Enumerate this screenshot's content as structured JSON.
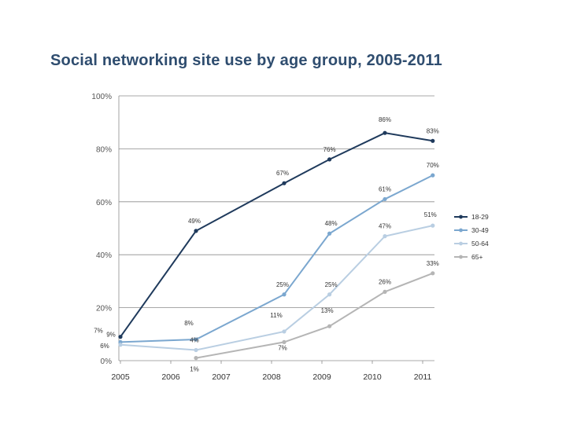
{
  "chart_data": {
    "type": "line",
    "title": "Social networking site use by age group, 2005-2011",
    "xlabel": "",
    "ylabel": "",
    "ylim": [
      0,
      100
    ],
    "y_ticks": [
      "0%",
      "20%",
      "40%",
      "60%",
      "80%",
      "100%"
    ],
    "x_ticks": [
      "2005",
      "2006",
      "2007",
      "2008",
      "2009",
      "2010",
      "2011"
    ],
    "legend_position": "right",
    "grid": true,
    "series": [
      {
        "name": "18-29",
        "color": "#1f3a5c",
        "points": [
          {
            "x": 2005.0,
            "y": 9,
            "label": "9%"
          },
          {
            "x": 2006.5,
            "y": 49,
            "label": "49%"
          },
          {
            "x": 2008.25,
            "y": 67,
            "label": "67%"
          },
          {
            "x": 2009.15,
            "y": 76,
            "label": "76%"
          },
          {
            "x": 2010.25,
            "y": 86,
            "label": "86%"
          },
          {
            "x": 2011.2,
            "y": 83,
            "label": "83%"
          }
        ]
      },
      {
        "name": "30-49",
        "color": "#7ba7cf",
        "points": [
          {
            "x": 2005.0,
            "y": 7,
            "label": "7%"
          },
          {
            "x": 2006.5,
            "y": 8,
            "label": "8%"
          },
          {
            "x": 2008.25,
            "y": 25,
            "label": "25%"
          },
          {
            "x": 2009.15,
            "y": 48,
            "label": "48%"
          },
          {
            "x": 2010.25,
            "y": 61,
            "label": "61%"
          },
          {
            "x": 2011.2,
            "y": 70,
            "label": "70%"
          }
        ]
      },
      {
        "name": "50-64",
        "color": "#b9cee2",
        "points": [
          {
            "x": 2005.0,
            "y": 6,
            "label": "6%"
          },
          {
            "x": 2006.5,
            "y": 4,
            "label": "4%"
          },
          {
            "x": 2008.25,
            "y": 11,
            "label": "11%"
          },
          {
            "x": 2009.15,
            "y": 25,
            "label": "25%"
          },
          {
            "x": 2010.25,
            "y": 47,
            "label": "47%"
          },
          {
            "x": 2011.2,
            "y": 51,
            "label": "51%"
          }
        ]
      },
      {
        "name": "65+",
        "color": "#b5b5b5",
        "points": [
          {
            "x": 2006.5,
            "y": 1,
            "label": "1%"
          },
          {
            "x": 2008.25,
            "y": 7,
            "label": "7%"
          },
          {
            "x": 2009.15,
            "y": 13,
            "label": "13%"
          },
          {
            "x": 2010.25,
            "y": 26,
            "label": "26%"
          },
          {
            "x": 2011.2,
            "y": 33,
            "label": "33%"
          }
        ]
      }
    ]
  }
}
